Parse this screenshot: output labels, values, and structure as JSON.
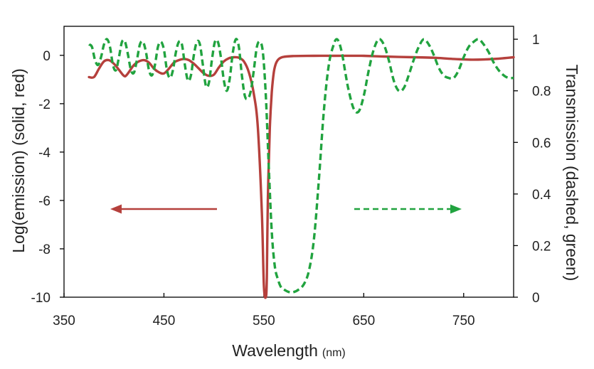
{
  "chart_data": {
    "type": "line",
    "xlabel": "Wavelength",
    "xlabel_unit": "(nm)",
    "ylabel_left": "Log(emission) (solid, red)",
    "ylabel_right": "Transmission (dashed, green)",
    "xlim": [
      350,
      800
    ],
    "ylim_left": [
      -10,
      1.2
    ],
    "ylim_right": [
      0,
      1.05
    ],
    "x_ticks": [
      "350",
      "450",
      "550",
      "650",
      "750"
    ],
    "y_left_ticks": [
      "0",
      "-2",
      "-4",
      "-6",
      "-8",
      "-10"
    ],
    "y_right_ticks": [
      "1",
      "0.8",
      "0.6",
      "0.4",
      "0.2",
      "0"
    ],
    "grid": false,
    "colors": {
      "emission": "#b5403c",
      "transmission": "#21a33f",
      "axis": "#000000"
    },
    "series": [
      {
        "name": "Log(emission)",
        "axis": "left",
        "style": "solid",
        "x": [
          375,
          380,
          385,
          390,
          395,
          400,
          405,
          410,
          413,
          420,
          425,
          430,
          435,
          440,
          445,
          450,
          455,
          460,
          465,
          470,
          475,
          480,
          485,
          490,
          495,
          500,
          505,
          510,
          515,
          520,
          525,
          530,
          535,
          540,
          544,
          548,
          550,
          552,
          553,
          554,
          556,
          558,
          560,
          562,
          565,
          570,
          580,
          600,
          620,
          650,
          670,
          700,
          720,
          740,
          760,
          780,
          800
        ],
        "y": [
          -0.9,
          -0.9,
          -0.55,
          -0.25,
          -0.2,
          -0.35,
          -0.6,
          -0.85,
          -0.8,
          -0.4,
          -0.25,
          -0.2,
          -0.3,
          -0.55,
          -0.7,
          -0.75,
          -0.55,
          -0.3,
          -0.2,
          -0.15,
          -0.2,
          -0.35,
          -0.55,
          -0.75,
          -0.85,
          -0.8,
          -0.5,
          -0.25,
          -0.12,
          -0.08,
          -0.1,
          -0.25,
          -0.7,
          -1.6,
          -3.0,
          -6.5,
          -9.5,
          -10,
          -9.2,
          -6.0,
          -3.0,
          -1.5,
          -0.7,
          -0.35,
          -0.15,
          -0.06,
          -0.03,
          -0.02,
          -0.02,
          -0.02,
          -0.05,
          -0.08,
          -0.1,
          -0.15,
          -0.18,
          -0.15,
          -0.08
        ]
      },
      {
        "name": "Transmission",
        "axis": "right",
        "style": "dashed",
        "x": [
          375,
          378,
          381,
          384,
          387,
          390,
          393,
          396,
          399,
          402,
          405,
          408,
          411,
          414,
          417,
          420,
          423,
          426,
          429,
          432,
          435,
          438,
          441,
          444,
          447,
          450,
          453,
          456,
          459,
          462,
          465,
          468,
          471,
          474,
          477,
          480,
          483,
          486,
          489,
          492,
          495,
          498,
          501,
          504,
          507,
          510,
          513,
          516,
          519,
          522,
          525,
          528,
          531,
          534,
          537,
          540,
          543,
          546,
          549,
          552,
          555,
          558,
          561,
          564,
          567,
          570,
          575,
          580,
          585,
          590,
          595,
          600,
          605,
          610,
          615,
          620,
          623,
          626,
          629,
          632,
          635,
          640,
          645,
          650,
          655,
          660,
          665,
          670,
          675,
          680,
          685,
          690,
          695,
          700,
          705,
          710,
          715,
          720,
          725,
          730,
          735,
          740,
          745,
          750,
          755,
          760,
          765,
          770,
          775,
          780,
          785,
          790,
          795,
          800
        ],
        "y": [
          0.98,
          0.97,
          0.92,
          0.9,
          0.93,
          0.98,
          1.0,
          0.97,
          0.9,
          0.88,
          0.93,
          0.99,
          0.99,
          0.94,
          0.88,
          0.87,
          0.92,
          0.98,
          0.99,
          0.95,
          0.88,
          0.86,
          0.9,
          0.97,
          0.99,
          0.96,
          0.88,
          0.85,
          0.88,
          0.95,
          0.99,
          0.98,
          0.9,
          0.84,
          0.86,
          0.94,
          0.99,
          0.98,
          0.9,
          0.82,
          0.83,
          0.92,
          0.99,
          0.99,
          0.93,
          0.84,
          0.8,
          0.85,
          0.95,
          1.0,
          0.97,
          0.86,
          0.78,
          0.77,
          0.8,
          0.88,
          0.97,
          0.99,
          0.95,
          0.78,
          0.5,
          0.25,
          0.12,
          0.07,
          0.04,
          0.03,
          0.02,
          0.02,
          0.03,
          0.05,
          0.1,
          0.22,
          0.45,
          0.72,
          0.9,
          0.98,
          1.0,
          0.98,
          0.93,
          0.86,
          0.8,
          0.73,
          0.72,
          0.78,
          0.88,
          0.96,
          1.0,
          0.98,
          0.92,
          0.84,
          0.8,
          0.81,
          0.86,
          0.92,
          0.97,
          1.0,
          0.98,
          0.94,
          0.89,
          0.86,
          0.85,
          0.85,
          0.88,
          0.93,
          0.97,
          0.99,
          1.0,
          0.98,
          0.95,
          0.91,
          0.88,
          0.86,
          0.85,
          0.85
        ]
      }
    ],
    "annotations": [
      {
        "type": "arrow",
        "series": "Log(emission)",
        "direction": "left",
        "style": "solid"
      },
      {
        "type": "arrow",
        "series": "Transmission",
        "direction": "right",
        "style": "dashed"
      }
    ]
  }
}
